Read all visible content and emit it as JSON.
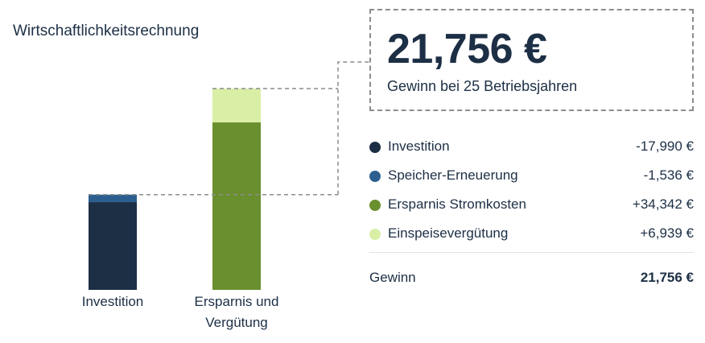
{
  "chart_data": {
    "type": "bar",
    "title": "Wirtschaftlichkeitsrechnung",
    "stacked": true,
    "categories": [
      "Investition",
      "Ersparnis und Vergütung"
    ],
    "series": [
      {
        "name": "Investition",
        "values": [
          17990,
          0
        ],
        "color": "#1c2f45"
      },
      {
        "name": "Speicher-Erneuerung",
        "values": [
          1536,
          0
        ],
        "color": "#2c5f8f"
      },
      {
        "name": "Ersparnis Stromkosten",
        "values": [
          0,
          34342
        ],
        "color": "#6a8f2e"
      },
      {
        "name": "Einspeisevergütung",
        "values": [
          0,
          6939
        ],
        "color": "#d9efa6"
      }
    ],
    "ylim": [
      0,
      41281
    ]
  },
  "summary": {
    "value": "21,756 €",
    "caption": "Gewinn bei 25 Betriebsjahren"
  },
  "legend": [
    {
      "label": "Investition",
      "value": "-17,990 €",
      "color": "#1c2f45"
    },
    {
      "label": "Speicher-Erneuerung",
      "value": "-1,536 €",
      "color": "#2c5f8f"
    },
    {
      "label": "Ersparnis Stromkosten",
      "value": "+34,342 €",
      "color": "#6a8f2e"
    },
    {
      "label": "Einspeisevergütung",
      "value": "+6,939 €",
      "color": "#d9efa6"
    }
  ],
  "total": {
    "label": "Gewinn",
    "value": "21,756 €"
  }
}
